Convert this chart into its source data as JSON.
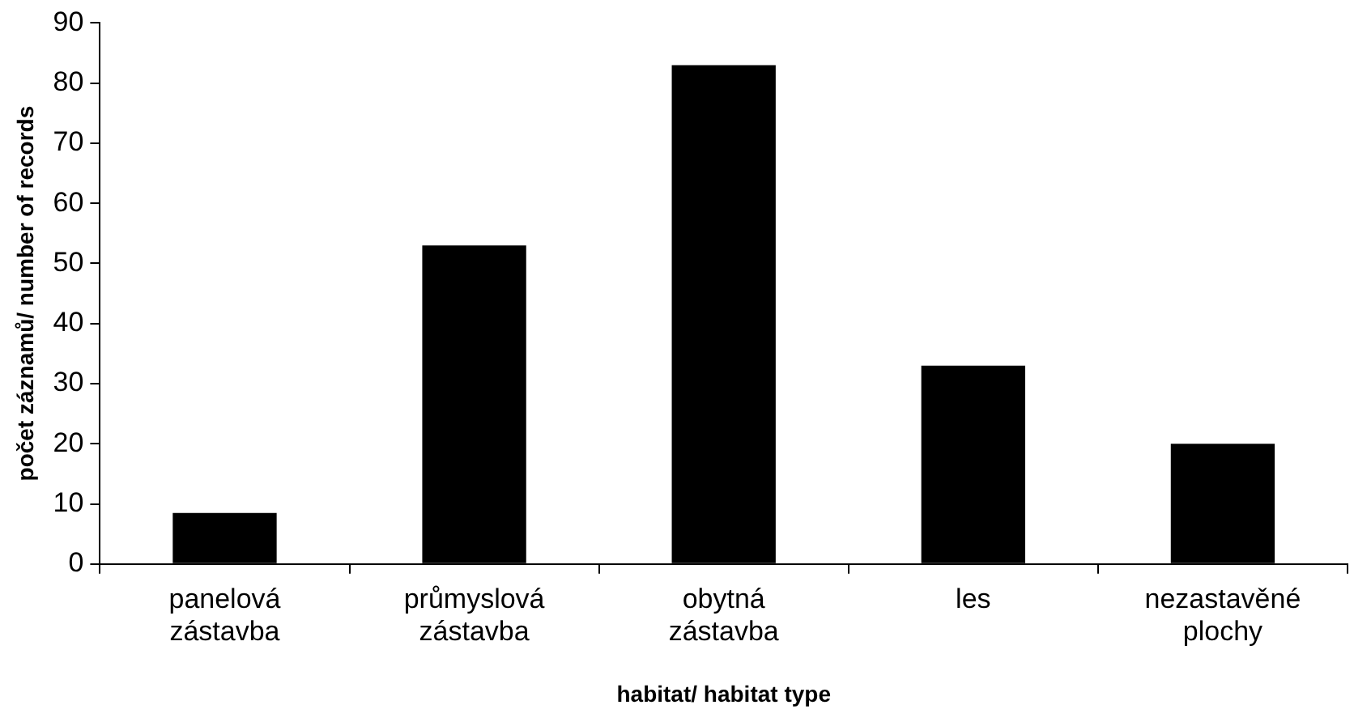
{
  "chart_data": {
    "type": "bar",
    "xlabel": "habitat/ habitat type",
    "ylabel": "počet záznamů/ number of records",
    "categories": [
      "panelová zástavba",
      "průmyslová zástavba",
      "obytná zástavba",
      "les",
      "nezastavěné plochy"
    ],
    "values": [
      8.5,
      53,
      83,
      33,
      20
    ],
    "color": "#000000",
    "ylim": [
      0,
      90
    ],
    "yticks": [
      0,
      10,
      20,
      30,
      40,
      50,
      60,
      70,
      80,
      90
    ],
    "grid": false,
    "legend": false
  }
}
